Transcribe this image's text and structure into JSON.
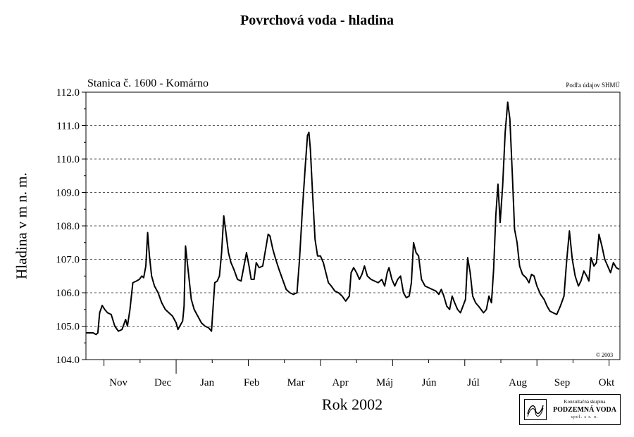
{
  "title": "Povrchová voda - hladina",
  "station": "Stanica č. 1600 - Komárno",
  "source": "Podľa údajov SHMÚ",
  "copyright": "© 2003",
  "logo": {
    "line1": "Konzultačná skupina",
    "line2": "PODZEMNÁ VODA",
    "line3": "spol. s r. o."
  },
  "chart_data": {
    "type": "line",
    "title": "Povrchová voda - hladina",
    "xlabel": "Rok 2002",
    "ylabel": "Hladina v m n. m.",
    "ylim": [
      104.0,
      112.0
    ],
    "ytick_labels": [
      "104.0",
      "105.0",
      "106.0",
      "107.0",
      "108.0",
      "109.0",
      "110.0",
      "111.0",
      "112.0"
    ],
    "months": [
      "Nov",
      "Dec",
      "Jan",
      "Feb",
      "Mar",
      "Apr",
      "Máj",
      "Jún",
      "Júl",
      "Aug",
      "Sep",
      "Okt"
    ],
    "grid": "horizontal dashed",
    "x_unit": "months from start of November 2001",
    "series": [
      {
        "name": "",
        "points": [
          [
            0.0,
            104.8
          ],
          [
            0.1,
            104.8
          ],
          [
            0.2,
            104.8
          ],
          [
            0.28,
            104.75
          ],
          [
            0.33,
            104.8
          ],
          [
            0.38,
            105.4
          ],
          [
            0.45,
            105.62
          ],
          [
            0.52,
            105.5
          ],
          [
            0.6,
            105.4
          ],
          [
            0.7,
            105.35
          ],
          [
            0.8,
            105.0
          ],
          [
            0.9,
            104.85
          ],
          [
            1.0,
            104.9
          ],
          [
            1.1,
            105.2
          ],
          [
            1.15,
            105.0
          ],
          [
            1.22,
            105.5
          ],
          [
            1.3,
            106.3
          ],
          [
            1.4,
            106.35
          ],
          [
            1.48,
            106.4
          ],
          [
            1.55,
            106.5
          ],
          [
            1.6,
            106.45
          ],
          [
            1.66,
            106.8
          ],
          [
            1.71,
            107.8
          ],
          [
            1.76,
            107.1
          ],
          [
            1.82,
            106.5
          ],
          [
            1.9,
            106.2
          ],
          [
            2.0,
            106.0
          ],
          [
            2.1,
            105.7
          ],
          [
            2.2,
            105.5
          ],
          [
            2.3,
            105.4
          ],
          [
            2.4,
            105.3
          ],
          [
            2.5,
            105.1
          ],
          [
            2.55,
            104.9
          ],
          [
            2.6,
            105.0
          ],
          [
            2.68,
            105.15
          ],
          [
            2.72,
            105.6
          ],
          [
            2.76,
            107.4
          ],
          [
            2.8,
            107.0
          ],
          [
            2.86,
            106.4
          ],
          [
            2.92,
            105.8
          ],
          [
            3.0,
            105.5
          ],
          [
            3.1,
            105.3
          ],
          [
            3.2,
            105.1
          ],
          [
            3.3,
            105.0
          ],
          [
            3.4,
            104.95
          ],
          [
            3.48,
            104.85
          ],
          [
            3.52,
            105.5
          ],
          [
            3.57,
            106.3
          ],
          [
            3.64,
            106.35
          ],
          [
            3.7,
            106.5
          ],
          [
            3.76,
            107.2
          ],
          [
            3.82,
            108.3
          ],
          [
            3.88,
            107.8
          ],
          [
            3.95,
            107.2
          ],
          [
            4.02,
            106.9
          ],
          [
            4.1,
            106.7
          ],
          [
            4.2,
            106.4
          ],
          [
            4.3,
            106.35
          ],
          [
            4.38,
            106.8
          ],
          [
            4.45,
            107.2
          ],
          [
            4.52,
            106.8
          ],
          [
            4.58,
            106.4
          ],
          [
            4.66,
            106.4
          ],
          [
            4.72,
            106.9
          ],
          [
            4.8,
            106.75
          ],
          [
            4.9,
            106.8
          ],
          [
            4.98,
            107.3
          ],
          [
            5.05,
            107.75
          ],
          [
            5.1,
            107.7
          ],
          [
            5.18,
            107.3
          ],
          [
            5.26,
            107.0
          ],
          [
            5.35,
            106.7
          ],
          [
            5.45,
            106.4
          ],
          [
            5.55,
            106.1
          ],
          [
            5.65,
            106.0
          ],
          [
            5.75,
            105.95
          ],
          [
            5.85,
            106.0
          ],
          [
            5.92,
            107.0
          ],
          [
            6.0,
            108.5
          ],
          [
            6.08,
            109.8
          ],
          [
            6.14,
            110.7
          ],
          [
            6.18,
            110.8
          ],
          [
            6.22,
            110.3
          ],
          [
            6.28,
            109.0
          ],
          [
            6.35,
            107.6
          ],
          [
            6.42,
            107.1
          ],
          [
            6.5,
            107.1
          ],
          [
            6.58,
            106.9
          ],
          [
            6.65,
            106.6
          ],
          [
            6.72,
            106.3
          ],
          [
            6.8,
            106.2
          ],
          [
            6.9,
            106.05
          ],
          [
            7.0,
            106.0
          ],
          [
            7.1,
            105.9
          ],
          [
            7.2,
            105.75
          ],
          [
            7.3,
            105.9
          ],
          [
            7.35,
            106.6
          ],
          [
            7.42,
            106.75
          ],
          [
            7.5,
            106.6
          ],
          [
            7.58,
            106.4
          ],
          [
            7.65,
            106.55
          ],
          [
            7.72,
            106.8
          ],
          [
            7.8,
            106.5
          ],
          [
            7.9,
            106.4
          ],
          [
            8.0,
            106.35
          ],
          [
            8.1,
            106.3
          ],
          [
            8.2,
            106.4
          ],
          [
            8.28,
            106.2
          ],
          [
            8.35,
            106.6
          ],
          [
            8.4,
            106.75
          ],
          [
            8.48,
            106.4
          ],
          [
            8.56,
            106.2
          ],
          [
            8.64,
            106.4
          ],
          [
            8.72,
            106.5
          ],
          [
            8.8,
            106.0
          ],
          [
            8.88,
            105.85
          ],
          [
            8.96,
            105.9
          ],
          [
            9.02,
            106.3
          ],
          [
            9.08,
            107.5
          ],
          [
            9.15,
            107.2
          ],
          [
            9.22,
            107.1
          ],
          [
            9.3,
            106.4
          ],
          [
            9.4,
            106.2
          ],
          [
            9.5,
            106.15
          ],
          [
            9.6,
            106.1
          ],
          [
            9.7,
            106.05
          ],
          [
            9.78,
            105.95
          ],
          [
            9.85,
            106.1
          ],
          [
            9.92,
            105.9
          ],
          [
            10.0,
            105.6
          ],
          [
            10.08,
            105.5
          ],
          [
            10.15,
            105.9
          ],
          [
            10.22,
            105.7
          ],
          [
            10.3,
            105.5
          ],
          [
            10.38,
            105.4
          ],
          [
            10.45,
            105.6
          ],
          [
            10.52,
            105.8
          ],
          [
            10.58,
            107.05
          ],
          [
            10.65,
            106.6
          ],
          [
            10.72,
            105.9
          ],
          [
            10.8,
            105.7
          ],
          [
            10.88,
            105.6
          ],
          [
            10.95,
            105.5
          ],
          [
            11.02,
            105.4
          ],
          [
            11.1,
            105.5
          ],
          [
            11.17,
            105.9
          ],
          [
            11.24,
            105.7
          ],
          [
            11.3,
            106.7
          ],
          [
            11.36,
            108.3
          ],
          [
            11.42,
            109.25
          ],
          [
            11.48,
            108.1
          ],
          [
            11.55,
            109.2
          ],
          [
            11.62,
            110.8
          ],
          [
            11.69,
            111.7
          ],
          [
            11.75,
            111.2
          ],
          [
            11.82,
            109.5
          ],
          [
            11.88,
            107.9
          ],
          [
            11.95,
            107.5
          ],
          [
            12.02,
            106.8
          ],
          [
            12.1,
            106.55
          ],
          [
            12.2,
            106.45
          ],
          [
            12.28,
            106.3
          ],
          [
            12.35,
            106.55
          ],
          [
            12.42,
            106.5
          ],
          [
            12.5,
            106.2
          ],
          [
            12.6,
            105.95
          ],
          [
            12.7,
            105.8
          ],
          [
            12.78,
            105.6
          ],
          [
            12.86,
            105.45
          ],
          [
            12.95,
            105.4
          ],
          [
            13.05,
            105.35
          ],
          [
            13.15,
            105.6
          ],
          [
            13.25,
            105.9
          ],
          [
            13.32,
            106.9
          ],
          [
            13.4,
            107.85
          ],
          [
            13.48,
            107.0
          ],
          [
            13.56,
            106.5
          ],
          [
            13.65,
            106.2
          ],
          [
            13.72,
            106.35
          ],
          [
            13.8,
            106.65
          ],
          [
            13.88,
            106.5
          ],
          [
            13.94,
            106.35
          ],
          [
            14.0,
            107.05
          ],
          [
            14.08,
            106.8
          ],
          [
            14.15,
            106.9
          ],
          [
            14.22,
            107.75
          ],
          [
            14.3,
            107.4
          ],
          [
            14.38,
            107.0
          ],
          [
            14.46,
            106.8
          ],
          [
            14.54,
            106.6
          ],
          [
            14.62,
            106.9
          ],
          [
            14.7,
            106.75
          ],
          [
            14.78,
            106.7
          ]
        ]
      }
    ]
  }
}
